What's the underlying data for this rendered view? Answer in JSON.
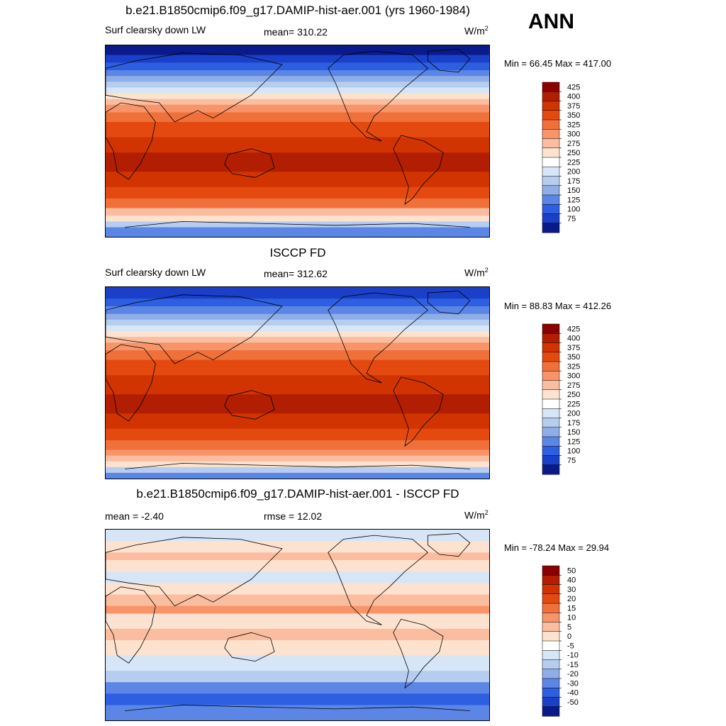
{
  "header": {
    "season": "ANN"
  },
  "panels": [
    {
      "title": "b.e21.B1850cmip6.f09_g17.DAMIP-hist-aer.001 (yrs 1960-1984)",
      "left_label": "Surf clearsky down LW",
      "center_label": "mean= 310.22",
      "units_base": "W/m",
      "units_exp": "2",
      "minmax": "Min =  66.45 Max = 417.00"
    },
    {
      "title": "ISCCP FD",
      "left_label": "Surf clearsky down LW",
      "center_label": "mean= 312.62",
      "units_base": "W/m",
      "units_exp": "2",
      "minmax": "Min =  88.83 Max = 412.26"
    },
    {
      "title": "b.e21.B1850cmip6.f09_g17.DAMIP-hist-aer.001 - ISCCP FD",
      "left_label": "mean =  -2.40",
      "center_label": "rmse =  12.02",
      "units_base": "W/m",
      "units_exp": "2",
      "minmax": "Min = -78.24 Max =  29.94"
    }
  ],
  "chart_data": [
    {
      "type": "heatmap",
      "title": "b.e21.B1850cmip6.f09_g17.DAMIP-hist-aer.001 (yrs 1960-1984)",
      "variable": "Surf clearsky down LW",
      "mean": 310.22,
      "min": 66.45,
      "max": 417.0,
      "colorbar_levels": [
        "425",
        "400",
        "375",
        "350",
        "325",
        "300",
        "275",
        "250",
        "225",
        "200",
        "175",
        "150",
        "125",
        "100",
        "75"
      ],
      "colorbar_colors": [
        "#8b0000",
        "#b11e02",
        "#d13400",
        "#e44a10",
        "#f0703a",
        "#f7946a",
        "#fbbd9f",
        "#fde2cf",
        "#ffffff",
        "#d6e6f7",
        "#b6cdf0",
        "#8faee8",
        "#5c86e6",
        "#2d5fe0",
        "#1a3fc8",
        "#0a1a8a"
      ],
      "bands": [
        [
          "#0a1a8a",
          0.0,
          0.05
        ],
        [
          "#1a3fc8",
          0.05,
          0.09
        ],
        [
          "#2d5fe0",
          0.09,
          0.13
        ],
        [
          "#5c86e6",
          0.13,
          0.16
        ],
        [
          "#8faee8",
          0.16,
          0.19
        ],
        [
          "#b6cdf0",
          0.19,
          0.22
        ],
        [
          "#d6e6f7",
          0.22,
          0.25
        ],
        [
          "#fde2cf",
          0.25,
          0.28
        ],
        [
          "#fbbd9f",
          0.28,
          0.31
        ],
        [
          "#f7946a",
          0.31,
          0.35
        ],
        [
          "#f0703a",
          0.35,
          0.4
        ],
        [
          "#e44a10",
          0.4,
          0.48
        ],
        [
          "#d13400",
          0.48,
          0.56
        ],
        [
          "#b11e02",
          0.56,
          0.66
        ],
        [
          "#d13400",
          0.66,
          0.74
        ],
        [
          "#e44a10",
          0.74,
          0.8
        ],
        [
          "#f0703a",
          0.8,
          0.85
        ],
        [
          "#fbbd9f",
          0.85,
          0.89
        ],
        [
          "#fde2cf",
          0.89,
          0.92
        ],
        [
          "#b6cdf0",
          0.92,
          0.95
        ],
        [
          "#5c86e6",
          0.95,
          1.0
        ]
      ]
    },
    {
      "type": "heatmap",
      "title": "ISCCP FD",
      "variable": "Surf clearsky down LW",
      "mean": 312.62,
      "min": 88.83,
      "max": 412.26,
      "colorbar_levels": [
        "425",
        "400",
        "375",
        "350",
        "325",
        "300",
        "275",
        "250",
        "225",
        "200",
        "175",
        "150",
        "125",
        "100",
        "75"
      ],
      "colorbar_colors": [
        "#8b0000",
        "#b11e02",
        "#d13400",
        "#e44a10",
        "#f0703a",
        "#f7946a",
        "#fbbd9f",
        "#fde2cf",
        "#ffffff",
        "#d6e6f7",
        "#b6cdf0",
        "#8faee8",
        "#5c86e6",
        "#2d5fe0",
        "#1a3fc8",
        "#0a1a8a"
      ],
      "bands": [
        [
          "#1a3fc8",
          0.0,
          0.06
        ],
        [
          "#2d5fe0",
          0.06,
          0.1
        ],
        [
          "#5c86e6",
          0.1,
          0.14
        ],
        [
          "#8faee8",
          0.14,
          0.17
        ],
        [
          "#b6cdf0",
          0.17,
          0.2
        ],
        [
          "#d6e6f7",
          0.2,
          0.23
        ],
        [
          "#fde2cf",
          0.23,
          0.26
        ],
        [
          "#fbbd9f",
          0.26,
          0.29
        ],
        [
          "#f7946a",
          0.29,
          0.33
        ],
        [
          "#f0703a",
          0.33,
          0.38
        ],
        [
          "#e44a10",
          0.38,
          0.46
        ],
        [
          "#d13400",
          0.46,
          0.56
        ],
        [
          "#b11e02",
          0.56,
          0.66
        ],
        [
          "#d13400",
          0.66,
          0.74
        ],
        [
          "#e44a10",
          0.74,
          0.8
        ],
        [
          "#f0703a",
          0.8,
          0.85
        ],
        [
          "#f7946a",
          0.85,
          0.88
        ],
        [
          "#fbbd9f",
          0.88,
          0.91
        ],
        [
          "#fde2cf",
          0.91,
          0.94
        ],
        [
          "#b6cdf0",
          0.94,
          0.97
        ],
        [
          "#5c86e6",
          0.97,
          1.0
        ]
      ]
    },
    {
      "type": "heatmap",
      "title": "b.e21.B1850cmip6.f09_g17.DAMIP-hist-aer.001 - ISCCP FD",
      "variable": "difference",
      "mean": -2.4,
      "rmse": 12.02,
      "min": -78.24,
      "max": 29.94,
      "colorbar_levels": [
        "50",
        "40",
        "30",
        "20",
        "15",
        "10",
        "5",
        "0",
        "-5",
        "-10",
        "-15",
        "-20",
        "-30",
        "-40",
        "-50"
      ],
      "colorbar_colors": [
        "#8b0000",
        "#b11e02",
        "#d13400",
        "#e44a10",
        "#f0703a",
        "#f7946a",
        "#fbbd9f",
        "#fde2cf",
        "#ffffff",
        "#d6e6f7",
        "#b6cdf0",
        "#8faee8",
        "#5c86e6",
        "#2d5fe0",
        "#1a3fc8",
        "#0a1a8a"
      ],
      "bands": [
        [
          "#d6e6f7",
          0.0,
          0.06
        ],
        [
          "#fde2cf",
          0.06,
          0.12
        ],
        [
          "#fbbd9f",
          0.12,
          0.16
        ],
        [
          "#fde2cf",
          0.16,
          0.22
        ],
        [
          "#d6e6f7",
          0.22,
          0.28
        ],
        [
          "#fde2cf",
          0.28,
          0.34
        ],
        [
          "#fbbd9f",
          0.34,
          0.4
        ],
        [
          "#f7946a",
          0.4,
          0.44
        ],
        [
          "#fde2cf",
          0.44,
          0.52
        ],
        [
          "#fbbd9f",
          0.52,
          0.58
        ],
        [
          "#fde2cf",
          0.58,
          0.66
        ],
        [
          "#d6e6f7",
          0.66,
          0.74
        ],
        [
          "#b6cdf0",
          0.74,
          0.8
        ],
        [
          "#5c86e6",
          0.8,
          0.86
        ],
        [
          "#2d5fe0",
          0.86,
          0.92
        ],
        [
          "#5c86e6",
          0.92,
          1.0
        ]
      ]
    }
  ]
}
